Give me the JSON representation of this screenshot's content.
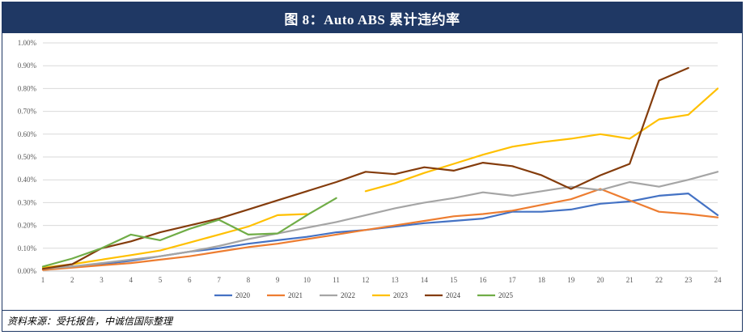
{
  "header": {
    "title": "图 8：Auto ABS  累计违约率"
  },
  "footer": {
    "source": "资料来源：受托报告，中诚信国际整理"
  },
  "chart_data": {
    "type": "line",
    "title": "图 8：Auto ABS  累计违约率",
    "xlabel": "",
    "ylabel": "",
    "x": [
      1,
      2,
      3,
      4,
      5,
      6,
      7,
      8,
      9,
      10,
      11,
      12,
      13,
      14,
      15,
      16,
      17,
      18,
      19,
      20,
      21,
      22,
      23,
      24
    ],
    "ylim": [
      0,
      1.0
    ],
    "yticks": [
      "0.00%",
      "0.10%",
      "0.20%",
      "0.30%",
      "0.40%",
      "0.50%",
      "0.60%",
      "0.70%",
      "0.80%",
      "0.90%",
      "1.00%"
    ],
    "grid": "horizontal",
    "legend_position": "bottom",
    "series": [
      {
        "name": "2020",
        "color": "#4472c4",
        "values": [
          0.01,
          0.02,
          0.03,
          0.045,
          0.065,
          0.085,
          0.1,
          0.12,
          0.135,
          0.15,
          0.17,
          0.18,
          0.195,
          0.21,
          0.22,
          0.23,
          0.26,
          0.26,
          0.27,
          0.295,
          0.305,
          0.33,
          0.34,
          0.245
        ]
      },
      {
        "name": "2021",
        "color": "#ed7d31",
        "values": [
          0.005,
          0.015,
          0.025,
          0.035,
          0.05,
          0.065,
          0.085,
          0.105,
          0.12,
          0.14,
          0.16,
          0.18,
          0.2,
          0.22,
          0.24,
          0.25,
          0.265,
          0.29,
          0.315,
          0.36,
          0.31,
          0.26,
          0.25,
          0.235
        ]
      },
      {
        "name": "2022",
        "color": "#a5a5a5",
        "values": [
          0.01,
          0.02,
          0.035,
          0.05,
          0.065,
          0.085,
          0.11,
          0.14,
          0.165,
          0.19,
          0.215,
          0.245,
          0.275,
          0.3,
          0.32,
          0.345,
          0.33,
          0.35,
          0.37,
          0.355,
          0.39,
          0.37,
          0.4,
          0.435
        ]
      },
      {
        "name": "2023",
        "color": "#ffc000",
        "values": [
          0.015,
          0.03,
          0.05,
          0.07,
          0.09,
          0.125,
          0.16,
          0.195,
          0.245,
          0.25,
          null,
          0.35,
          0.385,
          0.43,
          0.47,
          0.51,
          0.545,
          0.565,
          0.58,
          0.6,
          0.58,
          0.665,
          0.685,
          0.8
        ]
      },
      {
        "name": "2024",
        "color": "#843c0c",
        "values": [
          0.01,
          0.03,
          0.1,
          0.13,
          0.17,
          0.2,
          0.23,
          0.27,
          0.31,
          0.35,
          0.39,
          0.435,
          0.425,
          0.455,
          0.44,
          0.475,
          0.46,
          0.42,
          0.36,
          0.42,
          0.47,
          0.835,
          0.89,
          null
        ]
      },
      {
        "name": "2025",
        "color": "#70ad47",
        "values": [
          0.02,
          0.055,
          0.1,
          0.16,
          0.135,
          0.185,
          0.225,
          0.16,
          0.165,
          0.245,
          0.32,
          null,
          null,
          null,
          null,
          null,
          null,
          null,
          null,
          null,
          null,
          null,
          null,
          null
        ]
      }
    ]
  }
}
